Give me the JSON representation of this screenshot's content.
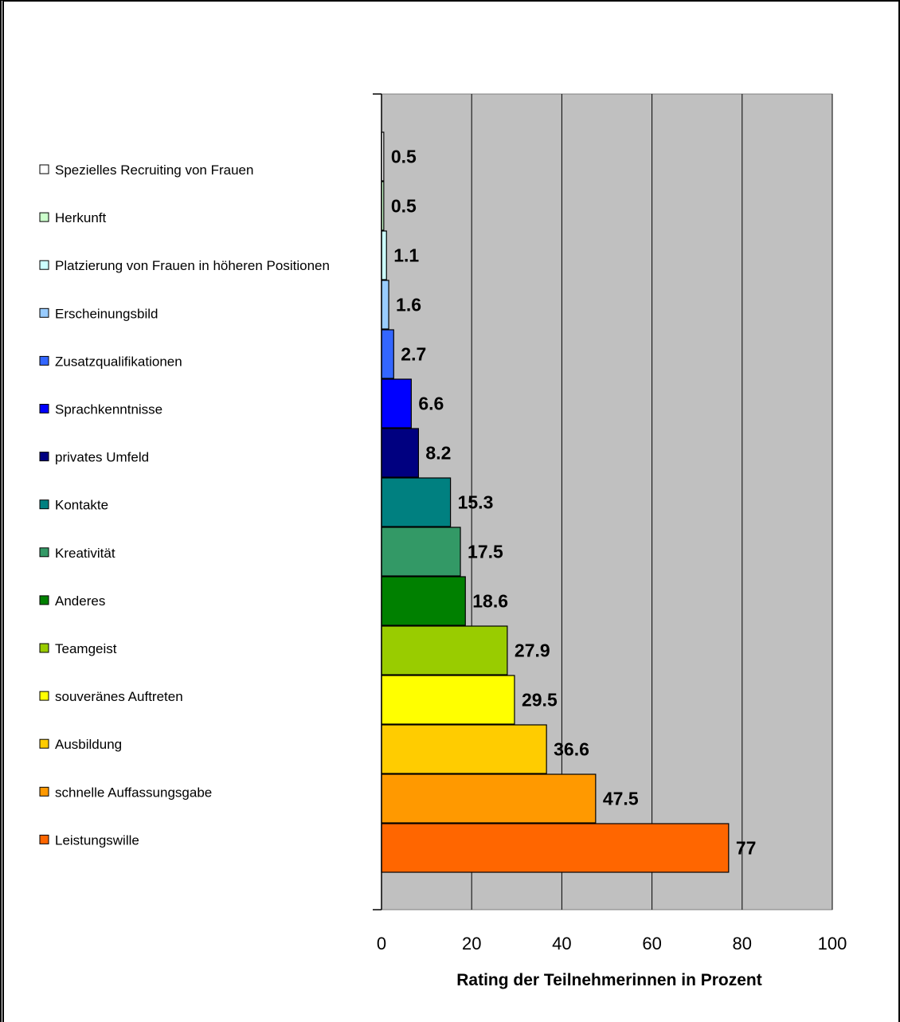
{
  "chart_data": {
    "type": "bar",
    "orientation": "horizontal",
    "title": "",
    "xlabel": "Rating der Teilnehmerinnen in Prozent",
    "ylabel": "",
    "xlim": [
      0,
      100
    ],
    "xticks": [
      0,
      20,
      40,
      60,
      80,
      100
    ],
    "grid": "vertical",
    "legend": "left",
    "plot_background": "#c0c0c0",
    "categories": [
      "Spezielles Recruiting von Frauen",
      "Herkunft",
      "Platzierung von Frauen in höheren Positionen",
      "Erscheinungsbild",
      "Zusatzqualifikationen",
      "Sprachkenntnisse",
      "privates Umfeld",
      "Kontakte",
      "Kreativität",
      "Anderes",
      "Teamgeist",
      "souveränes Auftreten",
      "Ausbildung",
      "schnelle Auffassungsgabe",
      "Leistungswille"
    ],
    "values": [
      0.5,
      0.5,
      1.1,
      1.6,
      2.7,
      6.6,
      8.2,
      15.3,
      17.5,
      18.6,
      27.9,
      29.5,
      36.6,
      47.5,
      77
    ],
    "value_labels": [
      "0.5",
      "0.5",
      "1.1",
      "1.6",
      "2.7",
      "6.6",
      "8.2",
      "15.3",
      "17.5",
      "18.6",
      "27.9",
      "29.5",
      "36.6",
      "47.5",
      "77"
    ],
    "tick_labels": [
      "0",
      "20",
      "40",
      "60",
      "80",
      "100"
    ],
    "colors": [
      "#ffffff",
      "#ccffcc",
      "#ccffff",
      "#99ccff",
      "#3366ff",
      "#0000ff",
      "#000080",
      "#008080",
      "#339966",
      "#008000",
      "#99cc00",
      "#ffff00",
      "#ffcc00",
      "#ff9900",
      "#ff6600"
    ]
  }
}
